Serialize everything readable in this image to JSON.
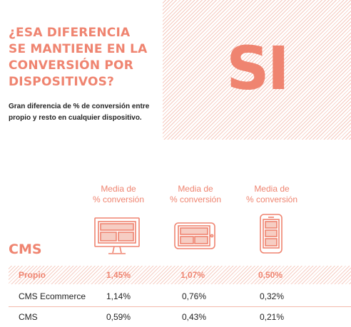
{
  "header": {
    "title_lines": [
      "¿ESA DIFERENCIA",
      "SE MANTIENE EN LA",
      "CONVERSIÓN POR",
      "DISPOSITIVOS?"
    ],
    "subtitle_lines": [
      "Gran diferencia de % de conversión entre",
      "propio y resto en cualquier dispositivo."
    ]
  },
  "answer": "SI",
  "columns": [
    {
      "line1": "Media de",
      "line2": "% conversión",
      "icon": "desktop-icon"
    },
    {
      "line1": "Media de",
      "line2": "% conversión",
      "icon": "tablet-icon"
    },
    {
      "line1": "Media de",
      "line2": "% conversión",
      "icon": "mobile-icon"
    }
  ],
  "section_title": "CMS",
  "rows": [
    {
      "label": "Propio",
      "values": [
        "1,45%",
        "1,07%",
        "0,50%"
      ]
    },
    {
      "label": "CMS Ecommerce",
      "values": [
        "1,14%",
        "0,76%",
        "0,32%"
      ]
    },
    {
      "label": "CMS",
      "values": [
        "0,59%",
        "0,43%",
        "0,21%"
      ]
    }
  ],
  "colors": {
    "accent": "#ef8470",
    "hatch": "#f5c8bd",
    "text": "#222222"
  }
}
